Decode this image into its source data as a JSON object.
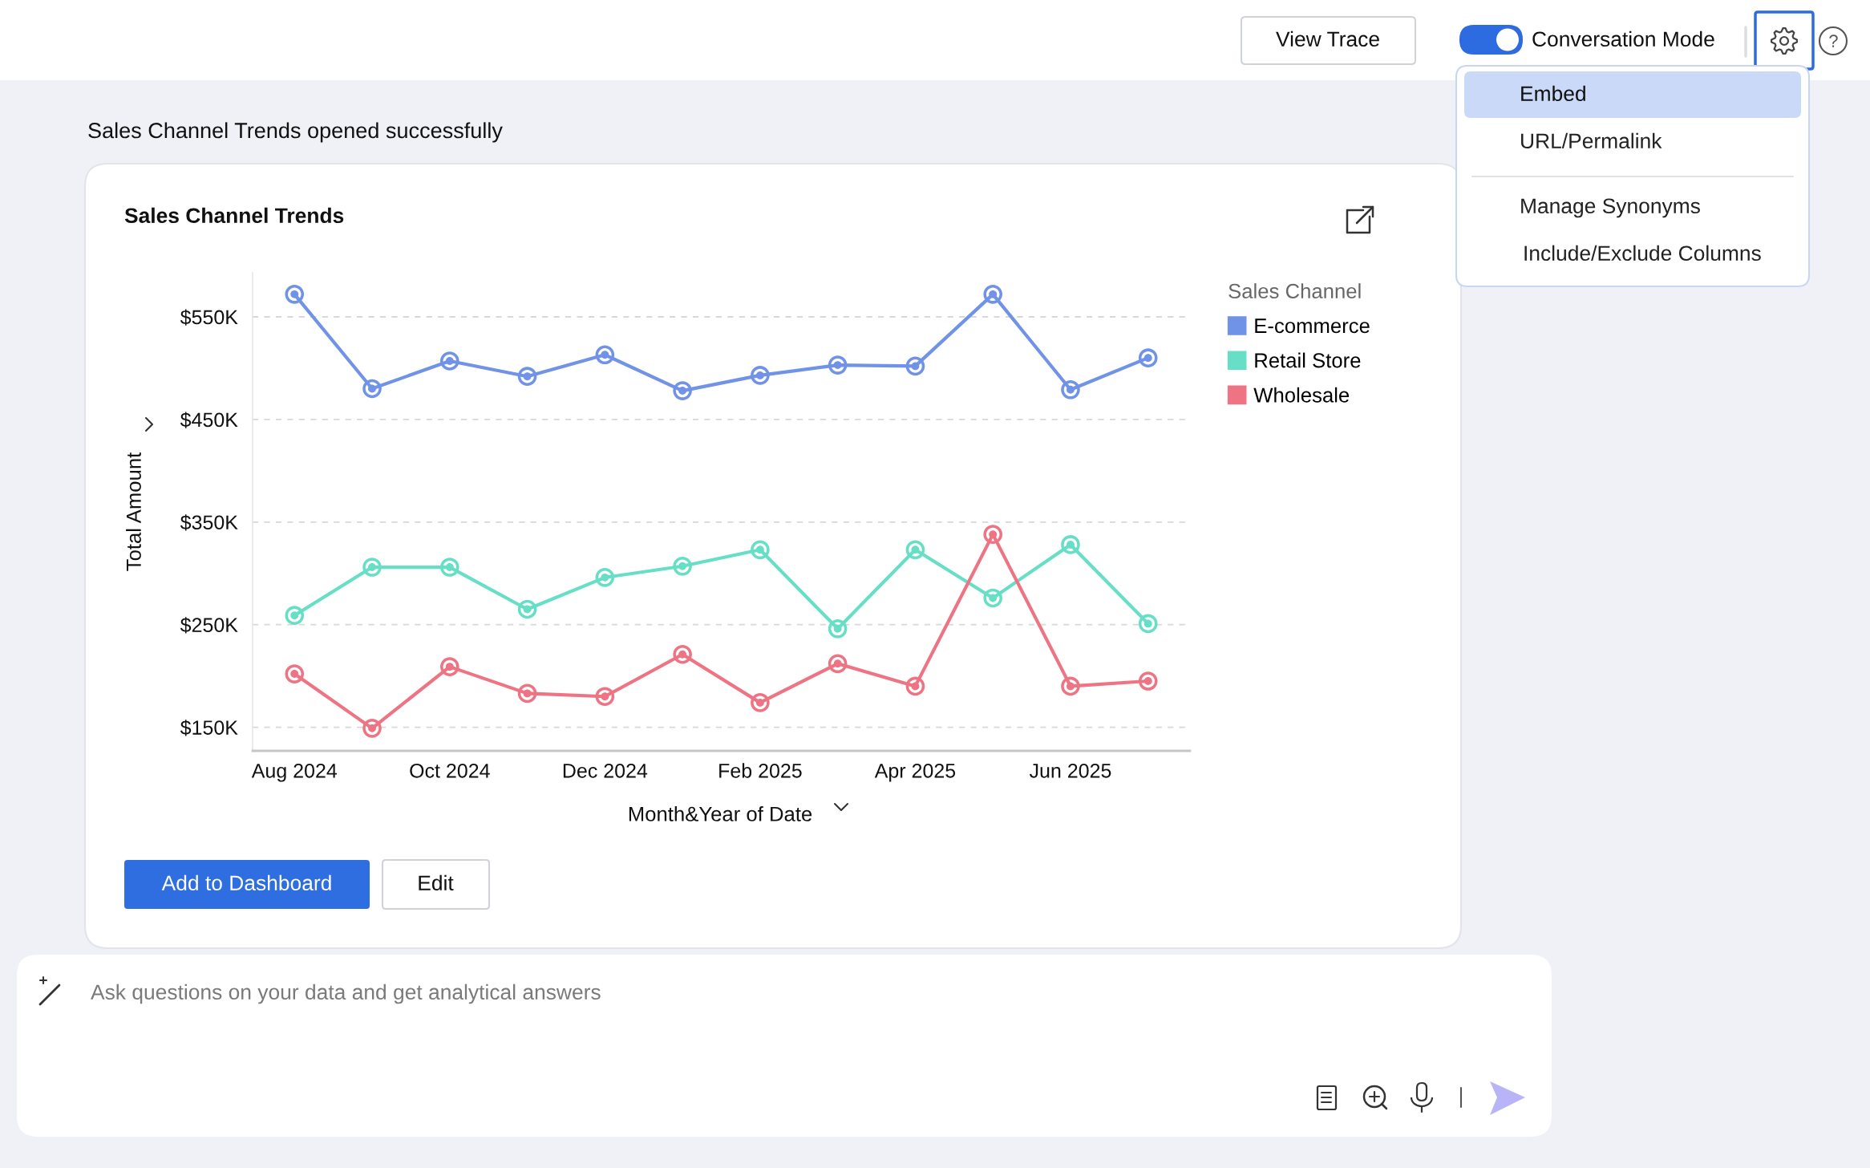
{
  "chart_data": {
    "type": "line",
    "title": "Sales Channel Trends",
    "xlabel": "Month&Year of Date",
    "ylabel": "Total Amount",
    "legend_title": "Sales Channel",
    "categories": [
      "Aug 2024",
      null,
      "Oct 2024",
      null,
      "Dec 2024",
      null,
      "Feb 2025",
      null,
      "Apr 2025",
      null,
      "Jun 2025",
      null
    ],
    "series": [
      {
        "name": "E-commerce",
        "color": "#7093e8",
        "values": [
          572000,
          480000,
          507000,
          492000,
          513000,
          478000,
          493000,
          503000,
          502000,
          572000,
          479000,
          510000
        ]
      },
      {
        "name": "Retail Store",
        "color": "#66dfc6",
        "values": [
          259000,
          306000,
          306000,
          265000,
          296000,
          307000,
          323000,
          246000,
          323000,
          276000,
          328000,
          251000
        ]
      },
      {
        "name": "Wholesale",
        "color": "#ee7484",
        "values": [
          202000,
          149000,
          209000,
          183000,
          180000,
          221000,
          174000,
          212000,
          190000,
          338000,
          190000,
          195000
        ]
      }
    ],
    "ylim": [
      127000,
      593000
    ],
    "yticks": [
      {
        "value": 150000,
        "label": "$150K"
      },
      {
        "value": 250000,
        "label": "$250K"
      },
      {
        "value": 350000,
        "label": "$350K"
      },
      {
        "value": 450000,
        "label": "$450K"
      },
      {
        "value": 550000,
        "label": "$550K"
      }
    ],
    "grid": "y",
    "legend": "top right",
    "marker": "circle",
    "line_style": "solid",
    "annotations": [
      "View Trace",
      "Conversation Mode",
      "Embed",
      "URL/Permalink",
      "Manage Synonyms",
      "Include/Exclude Columns",
      "Sales Channel Trends opened successfully",
      "Add to Dashboard",
      "Edit",
      "Ask questions on your data and get analytical answers"
    ]
  }
}
